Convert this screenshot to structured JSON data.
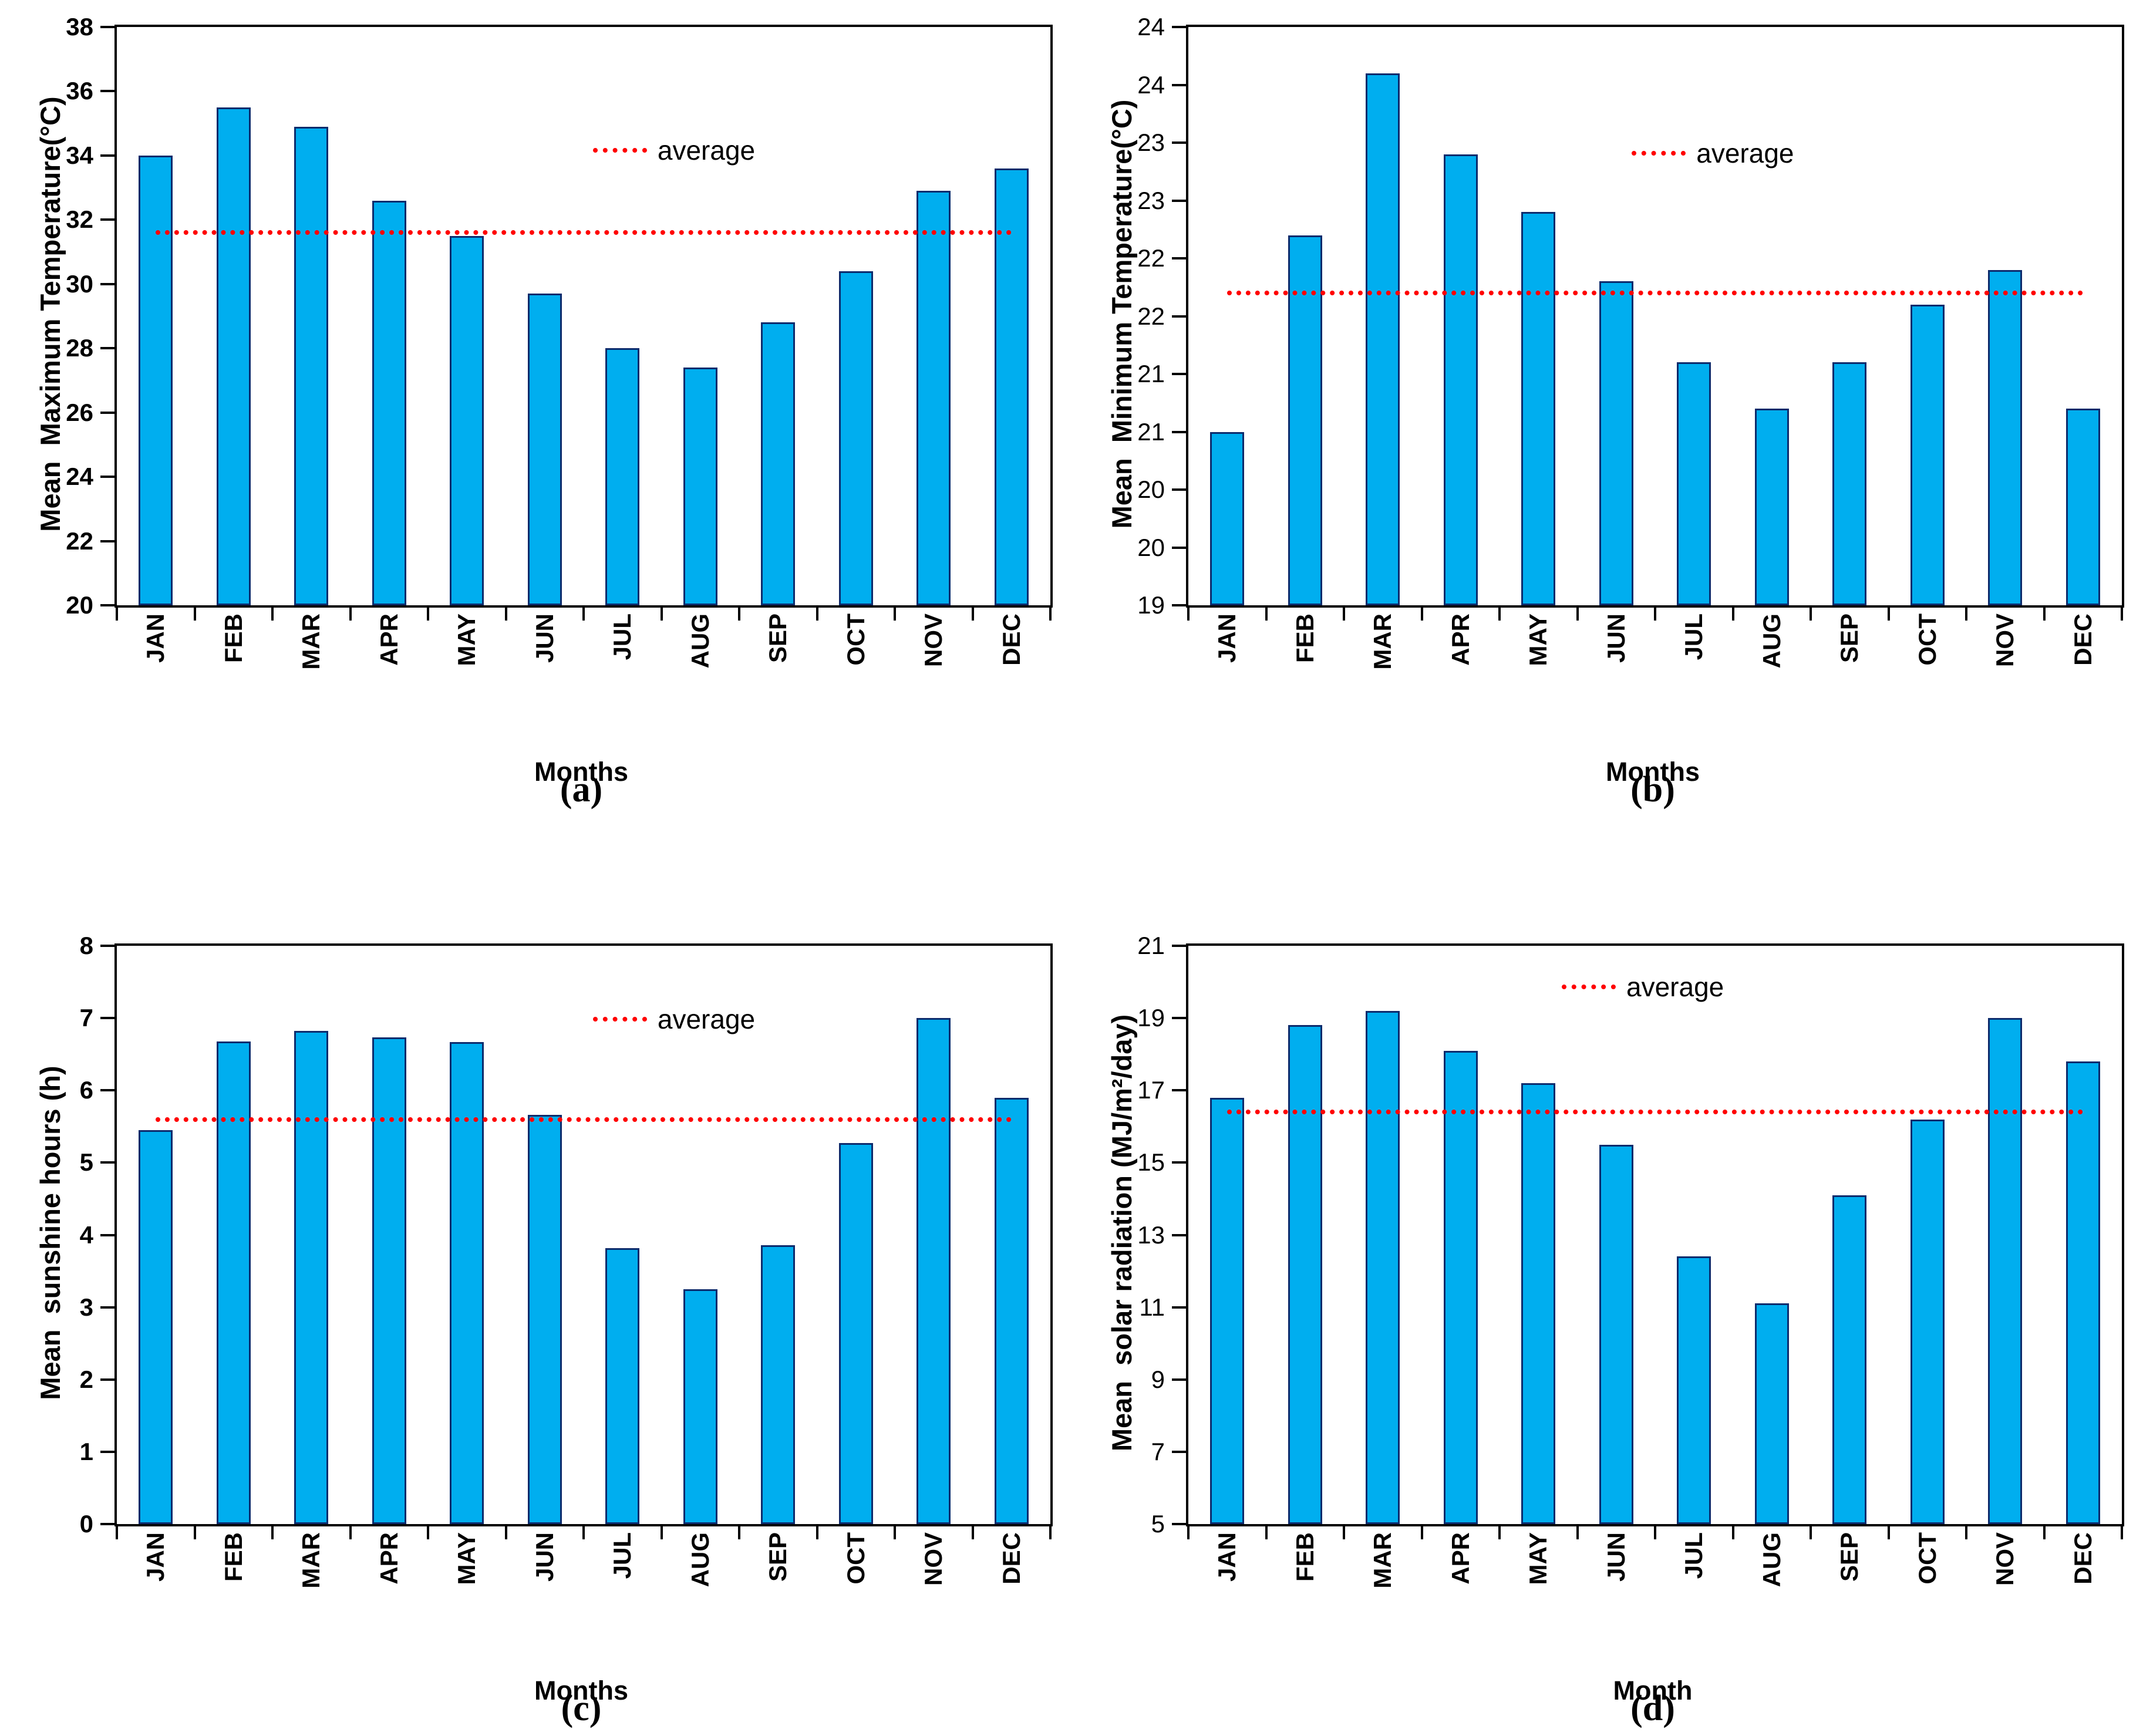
{
  "colors": {
    "bar_fill": "#00AEEF",
    "bar_border": "#0D2B6C",
    "average_line": "#FF0000",
    "axis": "#000000",
    "text": "#000000",
    "background": "#FFFFFF"
  },
  "chart_data": [
    {
      "id": "a",
      "type": "bar",
      "caption": "(a)",
      "ylabel": "Mean  Maximum Temperature(°C)",
      "xlabel": "Months",
      "legend_label": "average",
      "legend_position": {
        "x_pct": 51,
        "y_pct": 19
      },
      "categories": [
        "JAN",
        "FEB",
        "MAR",
        "APR",
        "MAY",
        "JUN",
        "JUL",
        "AUG",
        "SEP",
        "OCT",
        "NOV",
        "DEC"
      ],
      "values": [
        34.0,
        35.5,
        34.9,
        32.6,
        31.5,
        29.7,
        28.0,
        27.4,
        28.8,
        30.4,
        32.9,
        33.6
      ],
      "average": 31.6,
      "ylim": [
        20,
        38
      ],
      "yticks": [
        {
          "label": "38",
          "value": 38
        },
        {
          "label": "36",
          "value": 36
        },
        {
          "label": "34",
          "value": 34
        },
        {
          "label": "32",
          "value": 32
        },
        {
          "label": "30",
          "value": 30
        },
        {
          "label": "28",
          "value": 28
        },
        {
          "label": "26",
          "value": 26
        },
        {
          "label": "24",
          "value": 24
        },
        {
          "label": "22",
          "value": 22
        },
        {
          "label": "20",
          "value": 20
        }
      ],
      "grid": false
    },
    {
      "id": "b",
      "type": "bar",
      "caption": "(b)",
      "ylabel": "Mean  Minimum Temperature(°C)",
      "xlabel": "Months",
      "legend_label": "average",
      "legend_position": {
        "x_pct": 47.5,
        "y_pct": 19.5
      },
      "categories": [
        "JAN",
        "FEB",
        "MAR",
        "APR",
        "MAY",
        "JUN",
        "JUL",
        "AUG",
        "SEP",
        "OCT",
        "NOV",
        "DEC"
      ],
      "values": [
        20.5,
        22.2,
        23.6,
        22.9,
        22.4,
        21.8,
        21.1,
        20.7,
        21.1,
        21.6,
        21.9,
        20.7
      ],
      "average": 21.7,
      "ylim": [
        19,
        24
      ],
      "yticks": [
        {
          "label": "24",
          "value": 24
        },
        {
          "label": "24",
          "value": 23.5
        },
        {
          "label": "23",
          "value": 23
        },
        {
          "label": "23",
          "value": 22.5
        },
        {
          "label": "22",
          "value": 22
        },
        {
          "label": "22",
          "value": 21.5
        },
        {
          "label": "21",
          "value": 21
        },
        {
          "label": "21",
          "value": 20.5
        },
        {
          "label": "20",
          "value": 20
        },
        {
          "label": "20",
          "value": 19.5
        },
        {
          "label": "19",
          "value": 19
        }
      ],
      "grid": false
    },
    {
      "id": "c",
      "type": "bar",
      "caption": "(c)",
      "ylabel": "Mean  sunshine hours (h)",
      "xlabel": "Months",
      "legend_label": "average",
      "legend_position": {
        "x_pct": 51,
        "y_pct": 10.4
      },
      "categories": [
        "JAN",
        "FEB",
        "MAR",
        "APR",
        "MAY",
        "JUN",
        "JUL",
        "AUG",
        "SEP",
        "OCT",
        "NOV",
        "DEC"
      ],
      "values": [
        5.45,
        6.68,
        6.82,
        6.73,
        6.67,
        5.66,
        3.82,
        3.25,
        3.86,
        5.27,
        7.0,
        5.9
      ],
      "average": 5.6,
      "ylim": [
        0,
        8
      ],
      "yticks": [
        {
          "label": "8",
          "value": 8
        },
        {
          "label": "7",
          "value": 7
        },
        {
          "label": "6",
          "value": 6
        },
        {
          "label": "5",
          "value": 5
        },
        {
          "label": "4",
          "value": 4
        },
        {
          "label": "3",
          "value": 3
        },
        {
          "label": "2",
          "value": 2
        },
        {
          "label": "1",
          "value": 1
        },
        {
          "label": "0",
          "value": 0
        }
      ],
      "grid": false
    },
    {
      "id": "d",
      "type": "bar",
      "caption": "(d)",
      "ylabel": "Mean  solar radiation (MJ/m²/day)",
      "xlabel": "Month",
      "legend_label": "average",
      "legend_position": {
        "x_pct": 40,
        "y_pct": 4.8
      },
      "categories": [
        "JAN",
        "FEB",
        "MAR",
        "APR",
        "MAY",
        "JUN",
        "JUL",
        "AUG",
        "SEP",
        "OCT",
        "NOV",
        "DEC"
      ],
      "values": [
        16.8,
        18.8,
        19.2,
        18.1,
        17.2,
        15.5,
        12.4,
        11.1,
        14.1,
        16.2,
        19.0,
        17.8
      ],
      "average": 16.4,
      "ylim": [
        5,
        21
      ],
      "yticks": [
        {
          "label": "21",
          "value": 21
        },
        {
          "label": "19",
          "value": 19
        },
        {
          "label": "17",
          "value": 17
        },
        {
          "label": "15",
          "value": 15
        },
        {
          "label": "13",
          "value": 13
        },
        {
          "label": "11",
          "value": 11
        },
        {
          "label": "9",
          "value": 9
        },
        {
          "label": "7",
          "value": 7
        },
        {
          "label": "5",
          "value": 5
        }
      ],
      "grid": false
    }
  ]
}
